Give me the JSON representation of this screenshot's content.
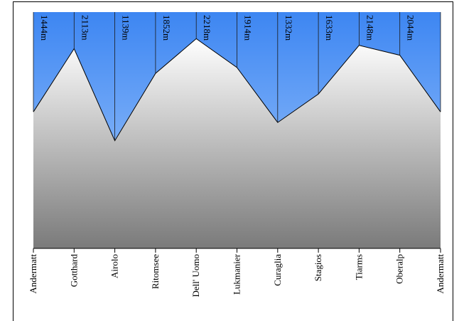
{
  "chart_data": {
    "type": "area",
    "categories": [
      "Andermatt",
      "Gotthard",
      "Airolo",
      "Ritomsee",
      "Dell' Uomo",
      "Lukmanier",
      "Curaglia",
      "Stagios",
      "Tiarms",
      "Oberalp",
      "Andermatt"
    ],
    "values": [
      1444,
      2113,
      1139,
      1852,
      2218,
      1914,
      1332,
      1633,
      2148,
      2044,
      1444
    ],
    "value_labels": [
      "1444m",
      "2113m",
      "1139m",
      "1852m",
      "2218m",
      "1914m",
      "1332m",
      "1633m",
      "2148m",
      "2044m",
      null
    ],
    "ylim": [
      0,
      2500
    ],
    "colors": {
      "sky_top": "#3d86f2",
      "sky_bottom": "#a9cdfc",
      "ground_top": "#ffffff",
      "ground_bottom": "#7a7a7a"
    }
  }
}
